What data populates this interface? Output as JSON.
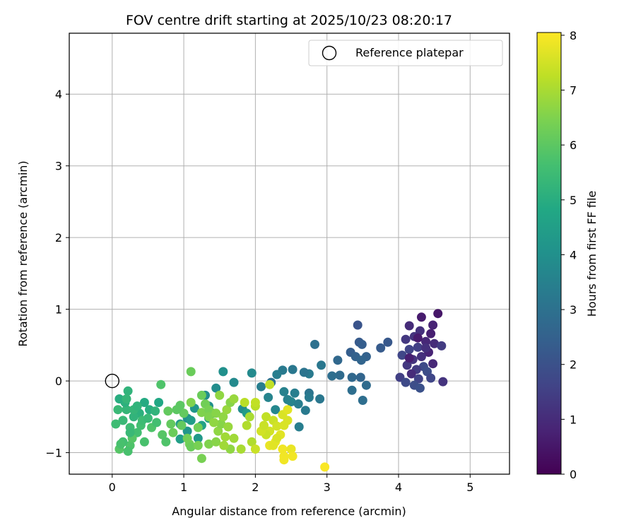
{
  "chart_data": {
    "type": "scatter",
    "title": "FOV centre drift starting at 2025/10/23 08:20:17",
    "xlabel": "Angular distance from reference (arcmin)",
    "ylabel": "Rotation from reference (arcmin)",
    "xlim": [
      -0.6,
      5.55
    ],
    "ylim": [
      -1.3,
      4.85
    ],
    "xticks": [
      0,
      1,
      2,
      3,
      4,
      5
    ],
    "yticks": [
      -1,
      0,
      1,
      2,
      3,
      4
    ],
    "xtick_labels": [
      "0",
      "1",
      "2",
      "3",
      "4",
      "5"
    ],
    "ytick_labels": [
      "−1",
      "0",
      "1",
      "2",
      "3",
      "4"
    ],
    "grid": true,
    "legend": {
      "position": "top-right",
      "entries": [
        "Reference platepar"
      ]
    },
    "colorbar": {
      "label": "Hours from first FF file",
      "range": [
        0,
        8.05
      ],
      "ticks": [
        0,
        1,
        2,
        3,
        4,
        5,
        6,
        7,
        8
      ],
      "tick_labels": [
        "0",
        "1",
        "2",
        "3",
        "4",
        "5",
        "6",
        "7",
        "8"
      ],
      "colormap": "viridis"
    },
    "reference_point": {
      "name": "Reference platepar",
      "x": 0,
      "y": 0
    },
    "series": [
      {
        "points": [
          [
            4.55,
            0.94,
            0.5
          ],
          [
            4.32,
            0.89,
            0.6
          ],
          [
            4.48,
            0.78,
            0.8
          ],
          [
            4.15,
            0.77,
            1.0
          ],
          [
            4.3,
            0.7,
            1.1
          ],
          [
            4.45,
            0.66,
            0.7
          ],
          [
            4.22,
            0.62,
            1.2
          ],
          [
            4.1,
            0.58,
            1.3
          ],
          [
            4.38,
            0.55,
            0.9
          ],
          [
            4.5,
            0.52,
            1.0
          ],
          [
            4.6,
            0.49,
            1.4
          ],
          [
            4.27,
            0.47,
            1.5
          ],
          [
            4.15,
            0.44,
            1.6
          ],
          [
            4.42,
            0.4,
            0.8
          ],
          [
            4.05,
            0.36,
            1.7
          ],
          [
            4.32,
            0.34,
            1.1
          ],
          [
            4.2,
            0.3,
            1.2
          ],
          [
            4.48,
            0.24,
            0.9
          ],
          [
            4.12,
            0.22,
            1.3
          ],
          [
            4.35,
            0.2,
            1.8
          ],
          [
            4.25,
            0.16,
            1.4
          ],
          [
            4.4,
            0.13,
            1.9
          ],
          [
            4.18,
            0.1,
            1.0
          ],
          [
            4.02,
            0.05,
            1.5
          ],
          [
            4.28,
            0.03,
            1.6
          ],
          [
            4.45,
            0.04,
            1.7
          ],
          [
            4.62,
            -0.01,
            1.2
          ],
          [
            4.1,
            -0.02,
            1.8
          ],
          [
            4.22,
            -0.06,
            1.9
          ],
          [
            4.3,
            -0.1,
            2.0
          ],
          [
            4.15,
            0.32,
            0.7
          ],
          [
            4.38,
            0.46,
            1.1
          ],
          [
            4.27,
            0.6,
            0.6
          ],
          [
            3.43,
            0.78,
            2.1
          ],
          [
            3.85,
            0.54,
            2.2
          ],
          [
            3.45,
            0.54,
            2.3
          ],
          [
            3.49,
            0.51,
            2.4
          ],
          [
            3.75,
            0.46,
            2.3
          ],
          [
            3.33,
            0.4,
            2.4
          ],
          [
            3.4,
            0.34,
            2.5
          ],
          [
            3.55,
            0.34,
            2.5
          ],
          [
            3.48,
            0.29,
            2.6
          ],
          [
            3.15,
            0.29,
            2.7
          ],
          [
            3.18,
            0.08,
            2.8
          ],
          [
            3.07,
            0.07,
            2.9
          ],
          [
            3.35,
            0.05,
            2.7
          ],
          [
            3.47,
            0.05,
            2.6
          ],
          [
            3.55,
            -0.06,
            2.8
          ],
          [
            3.35,
            -0.13,
            2.9
          ],
          [
            3.5,
            -0.27,
            2.9
          ],
          [
            2.83,
            0.51,
            3.0
          ],
          [
            2.92,
            0.22,
            3.2
          ],
          [
            2.75,
            0.1,
            3.3
          ],
          [
            2.68,
            0.12,
            3.1
          ],
          [
            2.52,
            0.16,
            3.2
          ],
          [
            2.38,
            0.15,
            3.3
          ],
          [
            2.3,
            0.09,
            3.4
          ],
          [
            2.22,
            -0.02,
            3.0
          ],
          [
            2.08,
            -0.08,
            3.4
          ],
          [
            2.4,
            -0.15,
            3.5
          ],
          [
            2.55,
            -0.17,
            3.4
          ],
          [
            2.75,
            -0.17,
            3.1
          ],
          [
            2.75,
            -0.23,
            3.3
          ],
          [
            2.45,
            -0.26,
            3.5
          ],
          [
            2.5,
            -0.29,
            3.6
          ],
          [
            2.6,
            -0.32,
            3.4
          ],
          [
            2.9,
            -0.25,
            3.2
          ],
          [
            2.7,
            -0.41,
            3.3
          ],
          [
            2.18,
            -0.23,
            3.6
          ],
          [
            2.28,
            -0.4,
            3.7
          ],
          [
            2.61,
            -0.64,
            3.4
          ],
          [
            1.95,
            0.11,
            3.8
          ],
          [
            1.7,
            -0.02,
            3.8
          ],
          [
            1.55,
            0.13,
            4.0
          ],
          [
            1.45,
            -0.1,
            3.9
          ],
          [
            1.3,
            -0.2,
            3.9
          ],
          [
            1.35,
            -0.35,
            4.0
          ],
          [
            1.4,
            -0.45,
            4.1
          ],
          [
            1.15,
            -0.38,
            4.2
          ],
          [
            1.05,
            -0.52,
            4.1
          ],
          [
            0.95,
            -0.6,
            4.3
          ],
          [
            1.05,
            -0.7,
            4.2
          ],
          [
            1.2,
            -0.8,
            4.3
          ],
          [
            0.95,
            -0.81,
            4.5
          ],
          [
            1.1,
            -0.55,
            4.4
          ],
          [
            1.25,
            -0.62,
            4.6
          ],
          [
            1.35,
            -0.52,
            4.5
          ],
          [
            1.82,
            -0.39,
            3.9
          ],
          [
            1.88,
            -0.45,
            4.4
          ],
          [
            0.65,
            -0.3,
            4.8
          ],
          [
            0.52,
            -0.4,
            5.0
          ],
          [
            0.6,
            -0.42,
            5.2
          ],
          [
            0.45,
            -0.3,
            4.9
          ],
          [
            0.38,
            -0.45,
            5.1
          ],
          [
            0.3,
            -0.5,
            5.2
          ],
          [
            0.2,
            -0.4,
            5.3
          ],
          [
            0.15,
            -0.55,
            5.4
          ],
          [
            0.25,
            -0.65,
            5.5
          ],
          [
            0.35,
            -0.72,
            5.6
          ],
          [
            0.45,
            -0.85,
            5.7
          ],
          [
            0.25,
            -0.9,
            5.8
          ],
          [
            0.1,
            -0.95,
            5.9
          ],
          [
            0.22,
            -0.98,
            5.7
          ],
          [
            0.05,
            -0.6,
            5.5
          ],
          [
            0.08,
            -0.4,
            5.4
          ],
          [
            0.22,
            -0.14,
            5.2
          ],
          [
            0.4,
            -0.62,
            5.6
          ],
          [
            0.55,
            -0.65,
            5.8
          ],
          [
            0.7,
            -0.75,
            5.9
          ],
          [
            0.75,
            -0.85,
            5.8
          ],
          [
            0.3,
            -0.4,
            5.3
          ],
          [
            0.18,
            -0.3,
            5.1
          ],
          [
            0.1,
            -0.25,
            5.0
          ],
          [
            0.35,
            -0.35,
            5.2
          ],
          [
            0.15,
            -0.85,
            5.6
          ],
          [
            0.28,
            -0.8,
            5.9
          ],
          [
            0.42,
            -0.55,
            5.5
          ],
          [
            0.5,
            -0.52,
            5.4
          ],
          [
            0.62,
            -0.58,
            5.6
          ],
          [
            0.2,
            -0.25,
            5.3
          ],
          [
            0.12,
            -0.88,
            5.7
          ],
          [
            0.25,
            -0.72,
            5.4
          ],
          [
            0.68,
            -0.05,
            5.8
          ],
          [
            0.95,
            -0.34,
            6.0
          ],
          [
            1.0,
            -0.45,
            6.1
          ],
          [
            0.9,
            -0.4,
            6.0
          ],
          [
            0.78,
            -0.42,
            6.1
          ],
          [
            0.85,
            -0.72,
            6.2
          ],
          [
            1.08,
            -0.88,
            6.3
          ],
          [
            1.1,
            -0.92,
            6.2
          ],
          [
            1.2,
            -0.9,
            6.4
          ],
          [
            1.2,
            -0.65,
            6.3
          ],
          [
            1.1,
            -0.3,
            6.5
          ],
          [
            0.97,
            -0.62,
            6.1
          ],
          [
            1.25,
            -0.2,
            6.2
          ],
          [
            1.3,
            -0.32,
            6.3
          ],
          [
            1.25,
            -0.44,
            6.5
          ],
          [
            1.35,
            -0.4,
            6.4
          ],
          [
            1.35,
            -0.88,
            6.5
          ],
          [
            1.45,
            -0.85,
            6.6
          ],
          [
            1.48,
            -0.7,
            6.7
          ],
          [
            1.52,
            -0.6,
            6.6
          ],
          [
            1.55,
            -0.5,
            6.7
          ],
          [
            1.6,
            -0.4,
            6.8
          ],
          [
            1.65,
            -0.3,
            6.6
          ],
          [
            1.62,
            -0.64,
            6.8
          ],
          [
            1.7,
            -0.8,
            6.9
          ],
          [
            1.65,
            -0.95,
            6.7
          ],
          [
            1.56,
            -0.9,
            6.9
          ],
          [
            1.8,
            -0.95,
            7.0
          ],
          [
            1.88,
            -0.62,
            7.1
          ],
          [
            1.92,
            -0.5,
            7.0
          ],
          [
            2.0,
            -0.35,
            7.2
          ],
          [
            1.95,
            -0.85,
            7.1
          ],
          [
            1.25,
            -1.08,
            6.4
          ],
          [
            1.1,
            0.13,
            6.2
          ],
          [
            1.35,
            -0.5,
            6.5
          ],
          [
            1.45,
            -0.45,
            6.6
          ],
          [
            1.5,
            -0.2,
            6.7
          ],
          [
            1.7,
            -0.25,
            6.8
          ],
          [
            1.58,
            -0.78,
            6.9
          ],
          [
            1.42,
            -0.58,
            6.7
          ],
          [
            1.05,
            -0.8,
            6.3
          ],
          [
            0.82,
            -0.6,
            6.1
          ],
          [
            2.2,
            -0.05,
            7.3
          ],
          [
            2.15,
            -0.5,
            7.3
          ],
          [
            2.25,
            -0.55,
            7.4
          ],
          [
            2.2,
            -0.7,
            7.5
          ],
          [
            2.3,
            -0.63,
            7.5
          ],
          [
            2.38,
            -0.47,
            7.6
          ],
          [
            2.45,
            -0.4,
            7.7
          ],
          [
            2.4,
            -0.62,
            7.6
          ],
          [
            2.35,
            -0.75,
            7.7
          ],
          [
            2.28,
            -0.85,
            7.8
          ],
          [
            2.2,
            -0.9,
            7.8
          ],
          [
            2.38,
            -0.95,
            7.9
          ],
          [
            2.4,
            -1.05,
            7.9
          ],
          [
            2.5,
            -0.95,
            7.8
          ],
          [
            2.52,
            -1.05,
            7.9
          ],
          [
            2.4,
            -1.1,
            7.9
          ],
          [
            2.15,
            -0.75,
            7.4
          ],
          [
            2.08,
            -0.7,
            7.5
          ],
          [
            2.3,
            -0.8,
            7.6
          ],
          [
            2.0,
            -0.95,
            7.4
          ],
          [
            2.0,
            -0.3,
            7.3
          ],
          [
            2.45,
            -0.55,
            7.6
          ],
          [
            2.97,
            -1.2,
            8.0
          ],
          [
            1.85,
            -0.3,
            7.2
          ],
          [
            2.25,
            -0.9,
            7.7
          ],
          [
            2.12,
            -0.62,
            7.4
          ]
        ]
      }
    ]
  }
}
